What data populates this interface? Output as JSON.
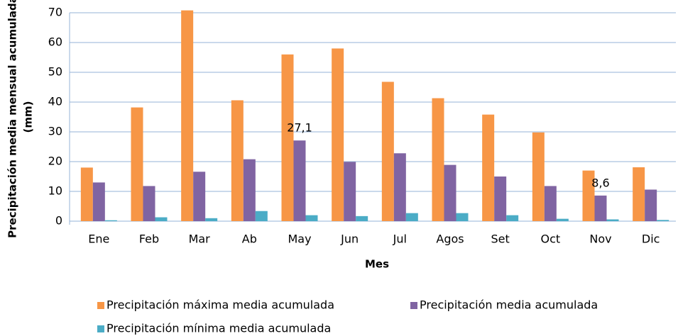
{
  "chart_data": {
    "type": "bar",
    "xlabel": "Mes",
    "ylabel": [
      "Precipitación media mensual acumulada",
      "(mm)"
    ],
    "categories": [
      "Ene",
      "Feb",
      "Mar",
      "Ab",
      "May",
      "Jun",
      "Jul",
      "Agos",
      "Set",
      "Oct",
      "Nov",
      "Dic"
    ],
    "series": [
      {
        "name": "Precipitación máxima media acumulada",
        "color": "#f79646",
        "values": [
          18,
          38.2,
          70.8,
          40.6,
          56,
          58,
          46.8,
          41.3,
          35.8,
          29.8,
          17,
          18.1
        ]
      },
      {
        "name": "Precipitación media acumulada",
        "color": "#8064a2",
        "values": [
          13,
          11.8,
          16.6,
          20.8,
          27.1,
          19.9,
          22.8,
          18.9,
          15,
          11.8,
          8.6,
          10.6
        ],
        "value_labels": [
          null,
          null,
          null,
          null,
          "27,1",
          null,
          null,
          null,
          null,
          null,
          "8,6",
          null
        ]
      },
      {
        "name": "Precipitación mínima media acumulada",
        "color": "#4bacc6",
        "values": [
          0.3,
          1.3,
          1.0,
          3.4,
          2.0,
          1.7,
          2.7,
          2.7,
          2.0,
          0.8,
          0.6,
          0.4
        ]
      }
    ],
    "ylim": [
      0,
      70
    ],
    "yticks": [
      0,
      10,
      20,
      30,
      40,
      50,
      60,
      70
    ],
    "grid": true
  }
}
